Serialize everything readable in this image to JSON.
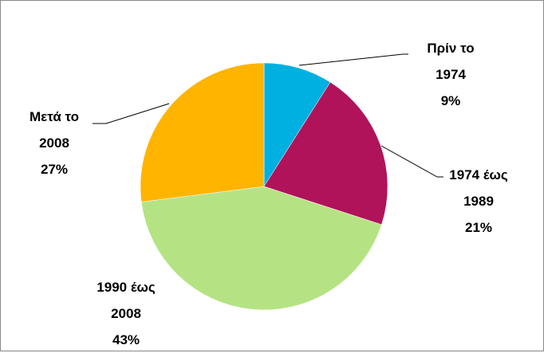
{
  "chart_data": {
    "type": "pie",
    "categories": [
      "Πρίν το 1974",
      "1974 έως 1989",
      "1990 έως 2008",
      "Μετά το 2008"
    ],
    "values": [
      9,
      21,
      43,
      27
    ],
    "value_labels": [
      "9%",
      "21%",
      "43%",
      "27%"
    ],
    "colors": [
      "#00b0e0",
      "#b0135a",
      "#b5e384",
      "#ffb400"
    ]
  }
}
